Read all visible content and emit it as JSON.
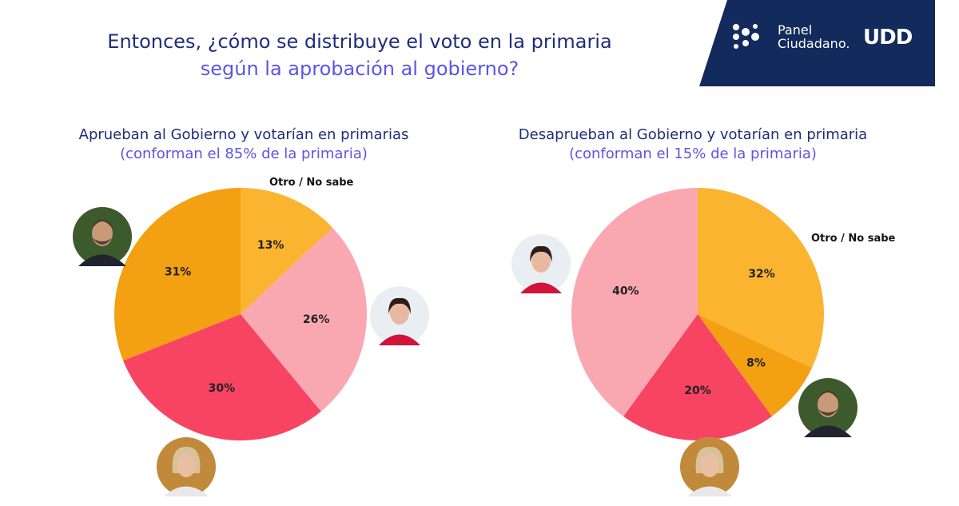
{
  "header": {
    "title_line1": "Entonces, ¿cómo se distribuye el voto en la primaria",
    "title_line2": "según la aprobación al gobierno?"
  },
  "logo": {
    "text_line1": "Panel",
    "text_line2": "Ciudadano.",
    "brand": "UDD"
  },
  "colors": {
    "navy": "#122a5c",
    "title_dark": "#1f2d7a",
    "title_light": "#5b55e6",
    "slice_light_orange": "#fbb430",
    "slice_dark_orange": "#f3a012",
    "slice_pink": "#f9a8b2",
    "slice_red": "#f84463"
  },
  "chart_data": [
    {
      "type": "pie",
      "title": "Aprueban al Gobierno y votarían en primarias",
      "subtitle": "(conforman el 85% de la primaria)",
      "start_angle_deg": 0,
      "slices": [
        {
          "label": "Otro / No sabe",
          "value": 13,
          "display": "13%",
          "color": "#fbb430",
          "avatar": "woman-short-dark-hair-avatar"
        },
        {
          "label": "",
          "value": 26,
          "display": "26%",
          "color": "#f9a8b2",
          "avatar": "woman-short-dark-hair-avatar"
        },
        {
          "label": "",
          "value": 30,
          "display": "30%",
          "color": "#f84463",
          "avatar": "woman-blonde-hair-avatar"
        },
        {
          "label": "",
          "value": 31,
          "display": "31%",
          "color": "#f3a012",
          "avatar": "man-beard-avatar"
        }
      ]
    },
    {
      "type": "pie",
      "title": "Desaprueban al Gobierno y votarían en primaria",
      "subtitle": "(conforman el 15% de la primaria)",
      "start_angle_deg": 0,
      "slices": [
        {
          "label": "Otro / No sabe",
          "value": 32,
          "display": "32%",
          "color": "#fbb430",
          "avatar": ""
        },
        {
          "label": "",
          "value": 8,
          "display": "8%",
          "color": "#f3a012",
          "avatar": "man-beard-avatar"
        },
        {
          "label": "",
          "value": 20,
          "display": "20%",
          "color": "#f84463",
          "avatar": "woman-blonde-hair-avatar"
        },
        {
          "label": "",
          "value": 40,
          "display": "40%",
          "color": "#f9a8b2",
          "avatar": "woman-short-dark-hair-avatar"
        }
      ]
    }
  ]
}
